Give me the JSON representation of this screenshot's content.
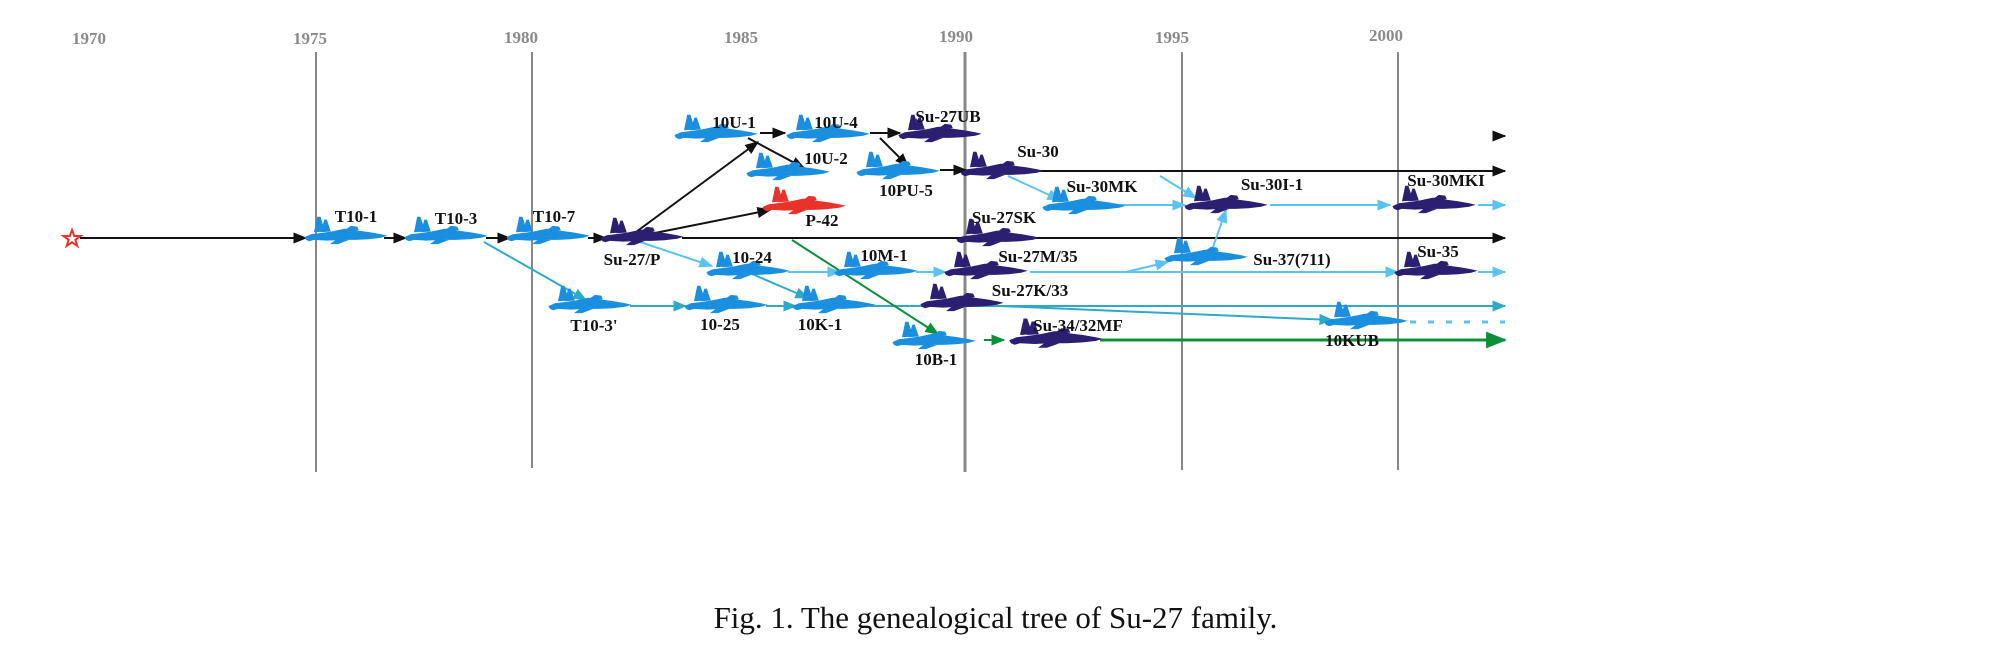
{
  "caption": "Fig. 1.  The genealogical tree of Su-27 family.",
  "colors": {
    "background": "#ffffff",
    "gridline": "#888888",
    "year_text": "#8a8a8a",
    "prototype": "#1a8fe0",
    "production": "#2b1f72",
    "other": "#e8322a",
    "arrow_black": "#111111",
    "arrow_light": "#5cc3f0",
    "arrow_teal": "#2fa9c9",
    "arrow_green": "#0b8f3a",
    "origin_star": "#e8322a"
  },
  "years": [
    "1970",
    "1975",
    "1980",
    "1985",
    "1990",
    "1995",
    "2000"
  ],
  "nodes": [
    {
      "id": "t10-1",
      "label": "T10-1",
      "color": "prototype",
      "icon": "aircraft-silhouette"
    },
    {
      "id": "t10-3",
      "label": "T10-3",
      "color": "prototype",
      "icon": "aircraft-silhouette"
    },
    {
      "id": "t10-7",
      "label": "T10-7",
      "color": "prototype",
      "icon": "aircraft-silhouette"
    },
    {
      "id": "su-27p",
      "label": "Su-27/P",
      "color": "production",
      "icon": "aircraft-silhouette"
    },
    {
      "id": "t10-3b",
      "label": "T10-3'",
      "color": "prototype",
      "icon": "aircraft-silhouette"
    },
    {
      "id": "10u-1",
      "label": "10U-1",
      "color": "prototype",
      "icon": "aircraft-silhouette"
    },
    {
      "id": "10u-4",
      "label": "10U-4",
      "color": "prototype",
      "icon": "aircraft-silhouette"
    },
    {
      "id": "su-27ub",
      "label": "Su-27UB",
      "color": "production",
      "icon": "aircraft-silhouette"
    },
    {
      "id": "10u-2",
      "label": "10U-2",
      "color": "prototype",
      "icon": "aircraft-silhouette"
    },
    {
      "id": "10pu-5",
      "label": "10PU-5",
      "color": "prototype",
      "icon": "aircraft-silhouette"
    },
    {
      "id": "p-42",
      "label": "P-42",
      "color": "other",
      "icon": "aircraft-silhouette"
    },
    {
      "id": "su-30",
      "label": "Su-30",
      "color": "production",
      "icon": "aircraft-silhouette"
    },
    {
      "id": "su-30mk",
      "label": "Su-30MK",
      "color": "prototype",
      "icon": "aircraft-silhouette"
    },
    {
      "id": "su-30i-1",
      "label": "Su-30I-1",
      "color": "production",
      "icon": "aircraft-silhouette"
    },
    {
      "id": "su-30mki",
      "label": "Su-30MKI",
      "color": "production",
      "icon": "aircraft-silhouette"
    },
    {
      "id": "su-27sk",
      "label": "Su-27SK",
      "color": "production",
      "icon": "aircraft-silhouette"
    },
    {
      "id": "10-24",
      "label": "10-24",
      "color": "prototype",
      "icon": "aircraft-silhouette"
    },
    {
      "id": "10m-1",
      "label": "10M-1",
      "color": "prototype",
      "icon": "aircraft-silhouette"
    },
    {
      "id": "su-27m35",
      "label": "Su-27M/35",
      "color": "production",
      "icon": "aircraft-silhouette"
    },
    {
      "id": "su-37",
      "label": "Su-37(711)",
      "color": "prototype",
      "icon": "aircraft-silhouette"
    },
    {
      "id": "su-35",
      "label": "Su-35",
      "color": "production",
      "icon": "aircraft-silhouette"
    },
    {
      "id": "10-25",
      "label": "10-25",
      "color": "prototype",
      "icon": "aircraft-silhouette"
    },
    {
      "id": "10k-1",
      "label": "10K-1",
      "color": "prototype",
      "icon": "aircraft-silhouette"
    },
    {
      "id": "su-27k33",
      "label": "Su-27K/33",
      "color": "production",
      "icon": "aircraft-silhouette"
    },
    {
      "id": "10kub",
      "label": "10KUB",
      "color": "prototype",
      "icon": "aircraft-silhouette"
    },
    {
      "id": "10b-1",
      "label": "10B-1",
      "color": "prototype",
      "icon": "aircraft-silhouette"
    },
    {
      "id": "su-34",
      "label": "Su-34/32MF",
      "color": "production",
      "icon": "aircraft-silhouette"
    }
  ]
}
